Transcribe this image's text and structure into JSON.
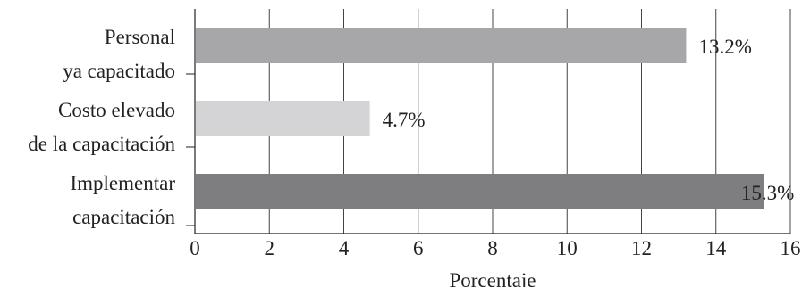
{
  "chart_data": {
    "type": "bar",
    "orientation": "horizontal",
    "categories": [
      [
        "Personal",
        "ya capacitado"
      ],
      [
        "Costo elevado",
        "de la capacitación"
      ],
      [
        "Implementar",
        "capacitación"
      ]
    ],
    "values": [
      13.2,
      4.7,
      15.3
    ],
    "value_labels": [
      "13.2%",
      "4.7%",
      "15.3%"
    ],
    "bar_colors": [
      "#a7a7a9",
      "#d4d4d6",
      "#7e7e80"
    ],
    "xlabel": "Porcentaje",
    "xlim": [
      0,
      16
    ],
    "xticks": [
      0,
      2,
      4,
      6,
      8,
      10,
      12,
      14,
      16
    ],
    "grid": "vertical",
    "grid_color": "#444444"
  }
}
